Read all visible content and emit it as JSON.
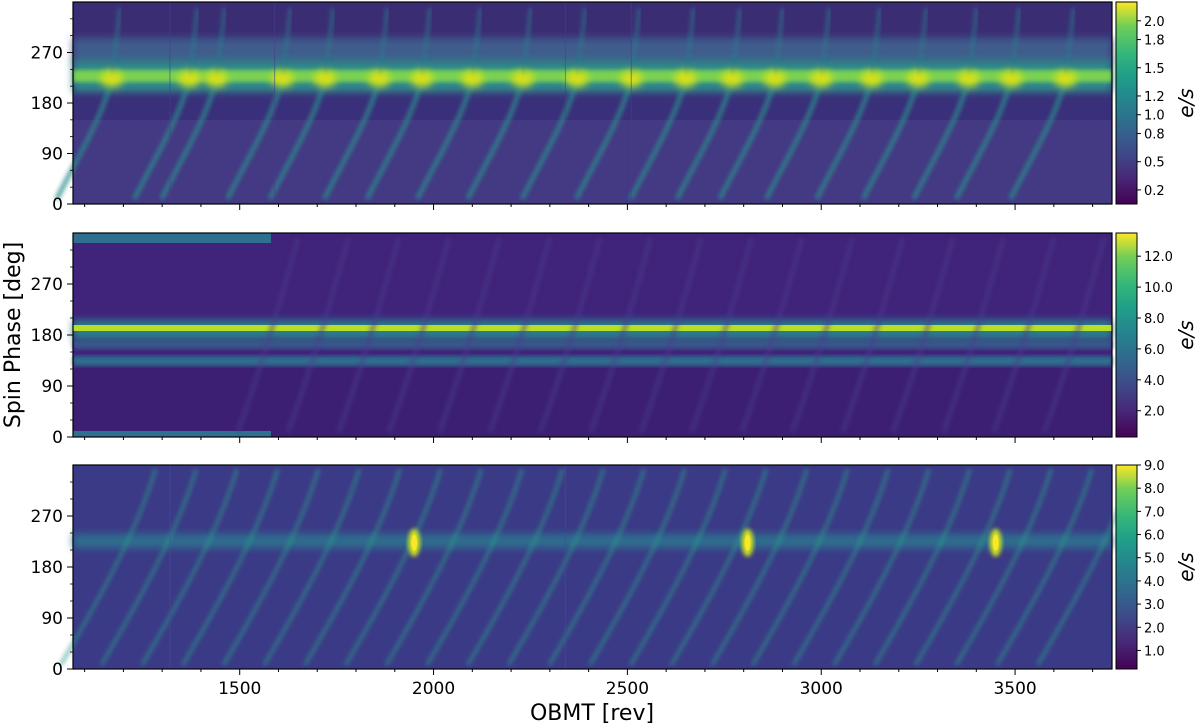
{
  "chart_data": [
    {
      "type": "heatmap",
      "panel": "top",
      "title": "",
      "xlim": [
        1070,
        3750
      ],
      "ylim": [
        0,
        360
      ],
      "yticks": [
        0,
        90,
        180,
        270
      ],
      "colorbar": {
        "label": "e/s",
        "min": 0.05,
        "max": 2.2,
        "ticks": [
          "0.2",
          "0.5",
          "0.8",
          "1.0",
          "1.2",
          "1.5",
          "1.8",
          "2.0"
        ],
        "tick_values": [
          0.2,
          0.5,
          0.8,
          1.0,
          1.2,
          1.5,
          1.8,
          2.0
        ]
      },
      "features": {
        "main_band_phase_deg": 223,
        "main_band_value": 1.7,
        "secondary_band_phase_deg": 255,
        "secondary_band_value": 0.8,
        "bright_spot_obmt": [
          1170,
          1370,
          1440,
          1610,
          1720,
          1860,
          1970,
          2100,
          2230,
          2370,
          2510,
          2650,
          2770,
          2880,
          3000,
          3130,
          3250,
          3380,
          3490,
          3630
        ],
        "segment_boundaries_obmt": [
          1320,
          1590,
          2340,
          2510
        ]
      }
    },
    {
      "type": "heatmap",
      "panel": "middle",
      "title": "",
      "ylabel": "Spin Phase [deg]",
      "xlim": [
        1070,
        3750
      ],
      "ylim": [
        0,
        360
      ],
      "yticks": [
        0,
        90,
        180,
        270
      ],
      "colorbar": {
        "label": "e/s",
        "min": 0.3,
        "max": 13.5,
        "ticks": [
          "2.0",
          "4.0",
          "6.0",
          "8.0",
          "10.0",
          "12.0"
        ],
        "tick_values": [
          2.0,
          4.0,
          6.0,
          8.0,
          10.0,
          12.0
        ]
      },
      "features": {
        "main_band_phase_deg": 189,
        "main_band_value": 12.0,
        "other_bands_phase_deg": [
          170,
          150,
          125
        ],
        "early_segment_end_obmt": 1590
      }
    },
    {
      "type": "heatmap",
      "panel": "bottom",
      "title": "",
      "xlabel": "OBMT [rev]",
      "xlim": [
        1070,
        3750
      ],
      "xticks": [
        1500,
        2000,
        2500,
        3000,
        3500
      ],
      "ylim": [
        0,
        360
      ],
      "yticks": [
        0,
        90,
        180,
        270
      ],
      "colorbar": {
        "label": "e/s",
        "min": 0.2,
        "max": 9.0,
        "ticks": [
          "1.0",
          "2.0",
          "3.0",
          "4.0",
          "5.0",
          "6.0",
          "7.0",
          "8.0",
          "9.0"
        ],
        "tick_values": [
          1.0,
          2.0,
          3.0,
          4.0,
          5.0,
          6.0,
          7.0,
          8.0,
          9.0
        ]
      },
      "features": {
        "band_phase_deg": 223,
        "bright_spot_obmt": [
          1950,
          2810,
          3450
        ],
        "segment_boundaries_obmt": [
          1320,
          2340
        ]
      }
    }
  ]
}
